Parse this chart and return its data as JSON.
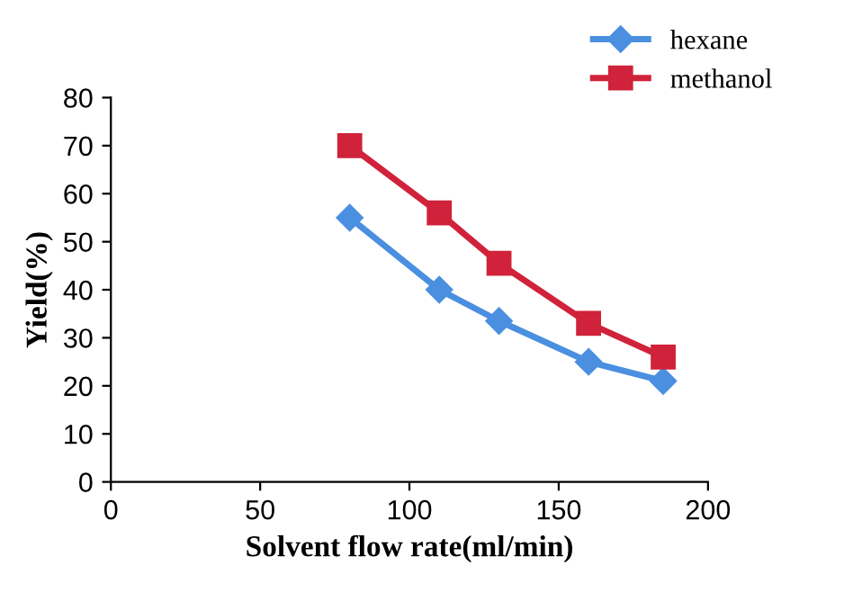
{
  "chart_data": {
    "type": "line",
    "xlabel": "Solvent flow rate(ml/min)",
    "ylabel": "Yield(%)",
    "x": [
      80,
      110,
      130,
      160,
      185
    ],
    "series": [
      {
        "name": "hexane",
        "color": "#4a8fe0",
        "marker": "diamond",
        "values": [
          55,
          40,
          33.5,
          25,
          21
        ]
      },
      {
        "name": "methanol",
        "color": "#d0223a",
        "marker": "square",
        "values": [
          70,
          56,
          45.5,
          33,
          26
        ]
      }
    ],
    "xlim": [
      0,
      200
    ],
    "xticks": [
      0,
      50,
      100,
      150,
      200
    ],
    "ylim": [
      0,
      80
    ],
    "yticks": [
      0,
      10,
      20,
      30,
      40,
      50,
      60,
      70,
      80
    ],
    "grid": false,
    "legend": "top right",
    "line_style": "solid"
  }
}
